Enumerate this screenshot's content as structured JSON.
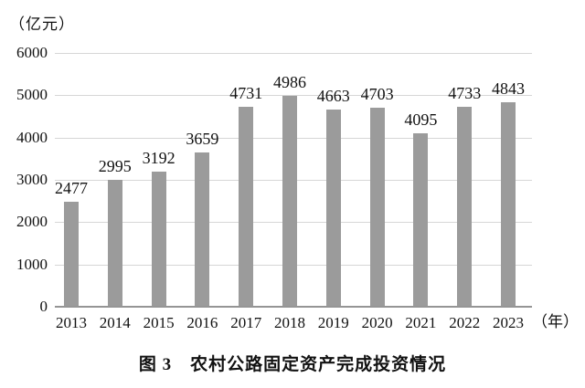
{
  "chart": {
    "unit_label": "（亿元）",
    "x_unit_label": "（年）",
    "caption": "图 3　农村公路固定资产完成投资情况"
  },
  "chart_data": {
    "type": "bar",
    "title": "图 3　农村公路固定资产完成投资情况",
    "categories": [
      "2013",
      "2014",
      "2015",
      "2016",
      "2017",
      "2018",
      "2019",
      "2020",
      "2021",
      "2022",
      "2023"
    ],
    "values": [
      2477,
      2995,
      3192,
      3659,
      4731,
      4986,
      4663,
      4703,
      4095,
      4733,
      4843
    ],
    "ylabel": "（亿元）",
    "xlabel": "（年）",
    "ylim": [
      0,
      6000
    ],
    "yticks": [
      0,
      1000,
      2000,
      3000,
      4000,
      5000,
      6000
    ],
    "grid": true,
    "legend": "none",
    "colors": {
      "bar": "#9b9b9b",
      "gridline": "#d6d6d6",
      "axis_line": "#959595",
      "text": "#111111"
    }
  }
}
